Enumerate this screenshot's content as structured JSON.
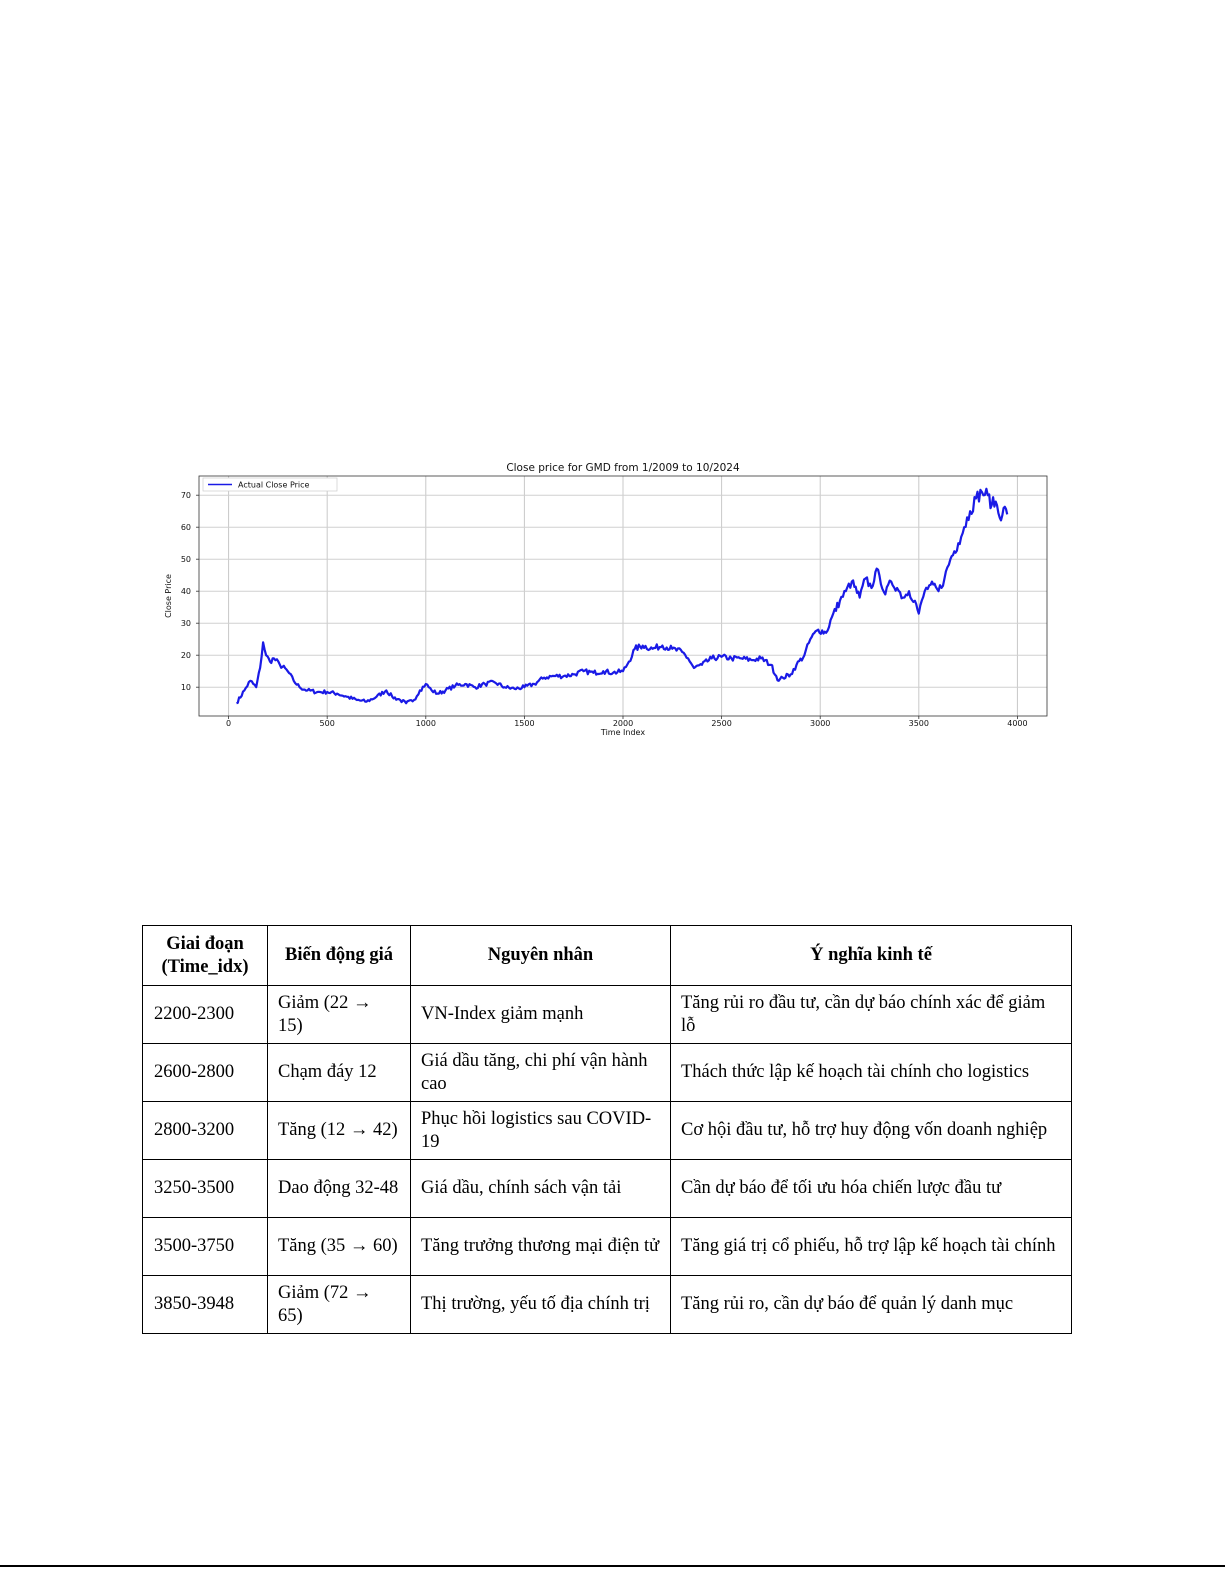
{
  "chart_data": {
    "type": "line",
    "title": "Close price for GMD from 1/2009 to 10/2024",
    "xlabel": "Time Index",
    "ylabel": "Close Price",
    "xlim": [
      -150,
      4150
    ],
    "ylim": [
      1,
      76
    ],
    "xticks": [
      0,
      500,
      1000,
      1500,
      2000,
      2500,
      3000,
      3500,
      4000
    ],
    "yticks": [
      10,
      20,
      30,
      40,
      50,
      60,
      70
    ],
    "grid": true,
    "legend_position": "top-left",
    "line_color": "#1a1ae6",
    "series": [
      {
        "name": "Actual Close Price",
        "x": [
          40,
          80,
          110,
          140,
          160,
          175,
          190,
          210,
          230,
          260,
          300,
          330,
          360,
          400,
          450,
          500,
          550,
          600,
          650,
          700,
          750,
          800,
          830,
          870,
          900,
          940,
          970,
          1000,
          1030,
          1060,
          1100,
          1150,
          1200,
          1250,
          1300,
          1350,
          1400,
          1450,
          1500,
          1550,
          1600,
          1650,
          1700,
          1750,
          1800,
          1850,
          1900,
          1950,
          2000,
          2030,
          2060,
          2100,
          2150,
          2200,
          2250,
          2300,
          2330,
          2360,
          2400,
          2450,
          2500,
          2550,
          2600,
          2650,
          2700,
          2750,
          2790,
          2810,
          2850,
          2880,
          2920,
          2950,
          2990,
          3030,
          3060,
          3100,
          3130,
          3160,
          3200,
          3230,
          3260,
          3280,
          3300,
          3330,
          3360,
          3390,
          3420,
          3450,
          3480,
          3500,
          3530,
          3560,
          3600,
          3630,
          3660,
          3700,
          3730,
          3760,
          3790,
          3820,
          3850,
          3870,
          3890,
          3910,
          3930,
          3948
        ],
        "values": [
          5,
          9,
          12,
          10,
          16,
          24,
          20,
          18,
          19,
          17,
          15,
          12,
          10,
          9,
          8.5,
          8.5,
          8,
          7,
          6,
          5.5,
          7,
          9,
          7,
          6,
          5,
          6,
          9,
          11,
          9,
          8,
          9,
          10.5,
          11,
          10,
          11,
          11.5,
          10,
          9.5,
          10,
          11,
          13,
          13.5,
          13.5,
          14,
          15,
          14.5,
          15,
          14.5,
          15,
          18,
          22,
          23,
          22,
          23,
          22,
          21,
          19,
          16,
          17,
          19,
          19.5,
          19,
          19,
          18.5,
          19,
          17,
          12,
          13,
          14,
          17,
          20,
          25,
          28,
          27,
          32,
          37,
          40,
          43,
          38,
          44,
          41,
          46,
          45,
          39,
          43,
          41,
          38,
          40,
          37,
          33,
          40,
          42,
          40,
          44,
          50,
          55,
          60,
          65,
          69,
          71,
          70,
          67,
          68,
          63,
          66,
          64
        ]
      }
    ]
  },
  "table": {
    "headers": [
      "Giai đoạn (Time_idx)",
      "Biến động giá",
      "Nguyên nhân",
      "Ý nghĩa kinh tế"
    ],
    "rows": [
      [
        "2200-2300",
        "Giảm  (22 → 15)",
        "VN-Index giảm mạnh",
        "Tăng rủi ro đầu tư, cần dự báo chính xác để giảm lỗ"
      ],
      [
        "2600-2800",
        "Chạm đáy 12",
        "Giá dầu tăng, chi phí vận hành cao",
        "Thách thức lập kế hoạch tài chính cho logistics"
      ],
      [
        "2800-3200",
        "Tăng  (12 → 42)",
        "Phục hồi logistics sau COVID-19",
        "Cơ hội đầu tư, hỗ trợ huy động vốn doanh nghiệp"
      ],
      [
        "3250-3500",
        "Dao động 32-48",
        "Giá dầu, chính sách vận tải",
        "Cần dự báo để tối ưu hóa chiến lược đầu tư"
      ],
      [
        "3500-3750",
        "Tăng  (35 → 60)",
        "Tăng trưởng thương mại điện tử",
        "Tăng giá trị cổ phiếu, hỗ trợ lập kế hoạch tài chính"
      ],
      [
        "3850-3948",
        "Giảm  (72 → 65)",
        "Thị trường, yếu tố địa chính trị",
        "Tăng rủi ro, cần dự báo để quản lý danh mục"
      ]
    ]
  }
}
